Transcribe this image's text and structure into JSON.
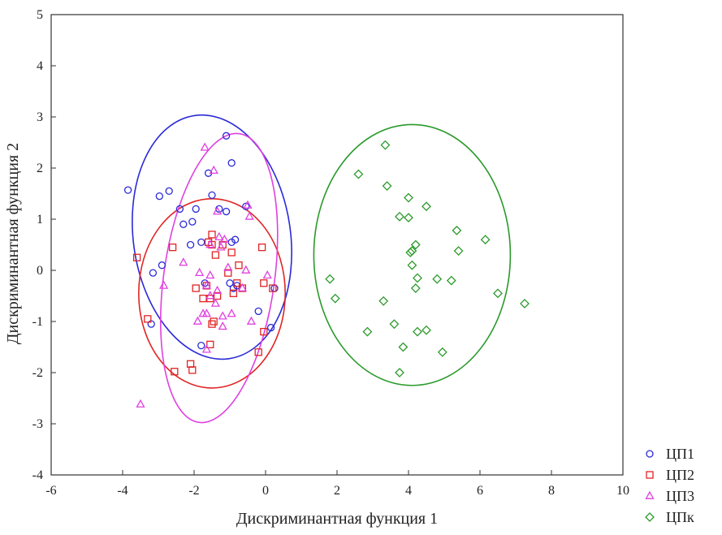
{
  "chart_data": {
    "type": "scatter",
    "title": "",
    "xlabel": "Дискриминантная функция 1",
    "ylabel": "Дискриминантная функция 2",
    "xlim": [
      -6,
      10
    ],
    "ylim": [
      -4,
      5
    ],
    "xticks": [
      "-6",
      "-4",
      "-2",
      "0",
      "2",
      "4",
      "6",
      "8",
      "10"
    ],
    "yticks": [
      "-4",
      "-3",
      "-2",
      "-1",
      "0",
      "1",
      "2",
      "3",
      "4",
      "5"
    ],
    "grid": false,
    "legend_position": "bottom-right",
    "series": [
      {
        "name": "ЦП1",
        "color": "#2a2ad8",
        "marker": "circle",
        "ellipse": {
          "cx": -1.5,
          "cy": 0.65,
          "rx": 2.2,
          "ry": 2.4,
          "angle": -8
        },
        "points": [
          [
            -3.85,
            1.57
          ],
          [
            -2.97,
            1.45
          ],
          [
            -2.7,
            1.55
          ],
          [
            -2.4,
            1.2
          ],
          [
            -2.3,
            0.9
          ],
          [
            -2.05,
            0.95
          ],
          [
            -1.6,
            1.9
          ],
          [
            -1.5,
            1.47
          ],
          [
            -1.3,
            1.2
          ],
          [
            -1.1,
            1.15
          ],
          [
            -1.1,
            2.63
          ],
          [
            -0.95,
            2.1
          ],
          [
            -0.55,
            1.25
          ],
          [
            -1.95,
            1.2
          ],
          [
            -2.1,
            0.5
          ],
          [
            -1.8,
            0.55
          ],
          [
            -0.95,
            0.55
          ],
          [
            -0.85,
            0.6
          ],
          [
            -2.9,
            0.1
          ],
          [
            -3.15,
            -0.05
          ],
          [
            -1.7,
            -0.25
          ],
          [
            -1.0,
            -0.25
          ],
          [
            -0.8,
            -0.3
          ],
          [
            -0.9,
            -0.35
          ],
          [
            -0.2,
            -0.8
          ],
          [
            -3.2,
            -1.05
          ],
          [
            -1.8,
            -1.47
          ],
          [
            0.15,
            -1.12
          ],
          [
            0.25,
            -0.35
          ]
        ]
      },
      {
        "name": "ЦП2",
        "color": "#e02424",
        "marker": "square",
        "ellipse": {
          "cx": -1.5,
          "cy": -0.45,
          "rx": 2.05,
          "ry": 1.85,
          "angle": 0
        },
        "points": [
          [
            -3.6,
            0.25
          ],
          [
            -2.6,
            0.45
          ],
          [
            -1.5,
            0.7
          ],
          [
            -1.6,
            0.55
          ],
          [
            -1.5,
            0.5
          ],
          [
            -1.2,
            0.5
          ],
          [
            -1.4,
            0.3
          ],
          [
            -0.95,
            0.35
          ],
          [
            -0.1,
            0.45
          ],
          [
            -0.75,
            0.1
          ],
          [
            -1.05,
            -0.05
          ],
          [
            -1.95,
            -0.35
          ],
          [
            -1.65,
            -0.3
          ],
          [
            -0.8,
            -0.25
          ],
          [
            -0.65,
            -0.35
          ],
          [
            -0.9,
            -0.45
          ],
          [
            -0.05,
            -0.25
          ],
          [
            0.2,
            -0.35
          ],
          [
            -1.75,
            -0.55
          ],
          [
            -1.55,
            -0.55
          ],
          [
            -1.35,
            -0.5
          ],
          [
            -1.45,
            -1.0
          ],
          [
            -1.5,
            -1.05
          ],
          [
            -3.3,
            -0.95
          ],
          [
            -0.05,
            -1.2
          ],
          [
            -0.2,
            -1.6
          ],
          [
            -1.55,
            -1.45
          ],
          [
            -2.1,
            -1.83
          ],
          [
            -2.05,
            -1.95
          ],
          [
            -2.55,
            -1.98
          ]
        ]
      },
      {
        "name": "ЦП3",
        "color": "#e040e0",
        "marker": "triangle",
        "ellipse": {
          "cx": -1.3,
          "cy": -0.15,
          "rx": 1.55,
          "ry": 2.85,
          "angle": 8
        },
        "points": [
          [
            -1.7,
            2.4
          ],
          [
            -1.45,
            1.95
          ],
          [
            -1.35,
            1.15
          ],
          [
            -0.5,
            1.27
          ],
          [
            -0.45,
            1.05
          ],
          [
            -1.3,
            0.65
          ],
          [
            -1.15,
            0.6
          ],
          [
            -1.55,
            0.5
          ],
          [
            -1.25,
            0.45
          ],
          [
            -2.3,
            0.15
          ],
          [
            -1.05,
            0.05
          ],
          [
            -0.55,
            0.0
          ],
          [
            0.05,
            -0.1
          ],
          [
            -1.85,
            -0.05
          ],
          [
            -1.55,
            -0.1
          ],
          [
            -2.85,
            -0.3
          ],
          [
            -1.65,
            -0.3
          ],
          [
            -0.65,
            -0.35
          ],
          [
            -1.35,
            -0.4
          ],
          [
            -1.55,
            -0.5
          ],
          [
            -1.4,
            -0.65
          ],
          [
            -1.65,
            -0.85
          ],
          [
            -1.75,
            -0.85
          ],
          [
            -0.95,
            -0.85
          ],
          [
            -1.2,
            -0.9
          ],
          [
            -0.4,
            -1.0
          ],
          [
            -1.9,
            -1.0
          ],
          [
            -1.2,
            -1.1
          ],
          [
            -1.65,
            -1.55
          ],
          [
            -3.5,
            -2.62
          ]
        ]
      },
      {
        "name": "ЦПк",
        "color": "#2b9a2b",
        "marker": "diamond",
        "ellipse": {
          "cx": 4.1,
          "cy": 0.3,
          "rx": 2.75,
          "ry": 2.55,
          "angle": 0
        },
        "points": [
          [
            3.35,
            2.45
          ],
          [
            2.6,
            1.88
          ],
          [
            3.4,
            1.65
          ],
          [
            4.0,
            1.42
          ],
          [
            4.5,
            1.25
          ],
          [
            3.75,
            1.05
          ],
          [
            4.0,
            1.03
          ],
          [
            5.35,
            0.78
          ],
          [
            6.15,
            0.6
          ],
          [
            4.2,
            0.5
          ],
          [
            4.1,
            0.38
          ],
          [
            4.05,
            0.35
          ],
          [
            5.4,
            0.38
          ],
          [
            4.1,
            0.1
          ],
          [
            4.25,
            -0.15
          ],
          [
            4.2,
            -0.35
          ],
          [
            4.8,
            -0.17
          ],
          [
            5.2,
            -0.2
          ],
          [
            1.8,
            -0.17
          ],
          [
            1.95,
            -0.55
          ],
          [
            3.3,
            -0.6
          ],
          [
            6.5,
            -0.45
          ],
          [
            7.25,
            -0.65
          ],
          [
            3.6,
            -1.05
          ],
          [
            2.85,
            -1.2
          ],
          [
            4.25,
            -1.2
          ],
          [
            4.5,
            -1.17
          ],
          [
            3.85,
            -1.5
          ],
          [
            4.95,
            -1.6
          ],
          [
            3.75,
            -2.0
          ]
        ]
      }
    ]
  }
}
